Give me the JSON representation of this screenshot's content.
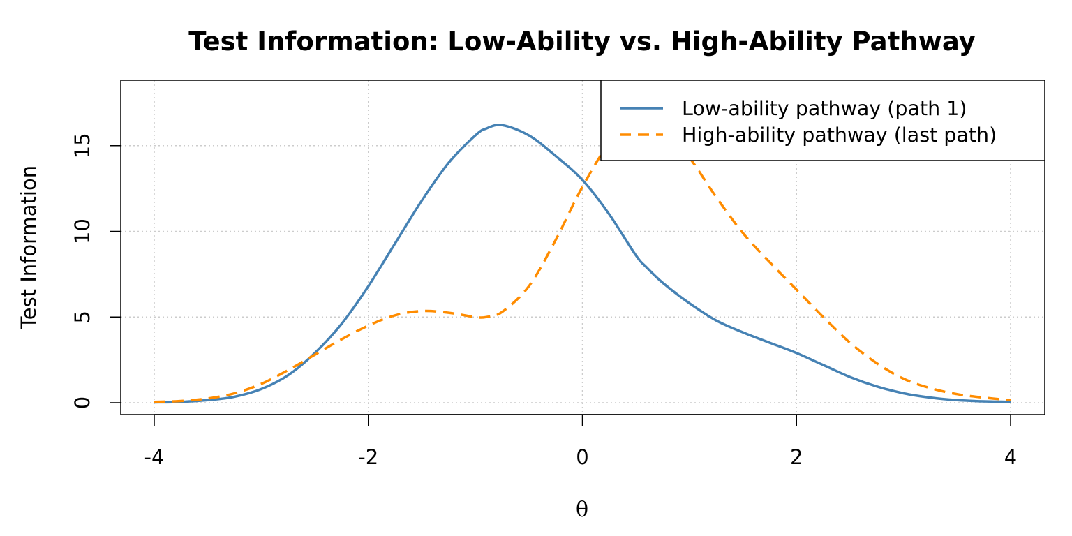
{
  "chart_data": {
    "type": "line",
    "title": "Test Information: Low-Ability vs. High-Ability Pathway",
    "xlabel": "θ",
    "ylabel": "Test Information",
    "xlim": [
      -4,
      4
    ],
    "ylim": [
      0,
      18
    ],
    "x_ticks": [
      "-4",
      "-2",
      "0",
      "2",
      "4"
    ],
    "y_ticks": [
      "0",
      "5",
      "10",
      "15"
    ],
    "grid": true,
    "legend_position": "top-right",
    "x": [
      -4.0,
      -3.75,
      -3.5,
      -3.25,
      -3.0,
      -2.75,
      -2.5,
      -2.25,
      -2.0,
      -1.75,
      -1.5,
      -1.25,
      -1.0,
      -0.9,
      -0.75,
      -0.5,
      -0.25,
      0.0,
      0.25,
      0.5,
      0.6,
      0.75,
      1.0,
      1.25,
      1.5,
      1.75,
      2.0,
      2.25,
      2.5,
      2.75,
      3.0,
      3.25,
      3.5,
      3.75,
      4.0
    ],
    "series": [
      {
        "name": "Low-ability pathway (path 1)",
        "color": "#4682B4",
        "line_style": "solid",
        "values": [
          0.02,
          0.05,
          0.15,
          0.35,
          0.8,
          1.6,
          2.9,
          4.6,
          6.8,
          9.3,
          11.8,
          14.0,
          15.6,
          16.0,
          16.2,
          15.6,
          14.4,
          13.0,
          11.0,
          8.6,
          7.9,
          7.0,
          5.8,
          4.8,
          4.1,
          3.5,
          2.9,
          2.2,
          1.5,
          0.95,
          0.55,
          0.3,
          0.15,
          0.08,
          0.05
        ]
      },
      {
        "name": "High-ability pathway (last path)",
        "color": "#FF8C00",
        "line_style": "dashed",
        "values": [
          0.05,
          0.1,
          0.25,
          0.55,
          1.1,
          1.9,
          2.8,
          3.7,
          4.5,
          5.1,
          5.35,
          5.25,
          5.0,
          5.0,
          5.3,
          6.8,
          9.5,
          12.6,
          15.1,
          16.3,
          16.4,
          16.1,
          14.3,
          12.0,
          9.9,
          8.2,
          6.6,
          5.0,
          3.5,
          2.3,
          1.4,
          0.85,
          0.5,
          0.3,
          0.15
        ]
      }
    ]
  }
}
